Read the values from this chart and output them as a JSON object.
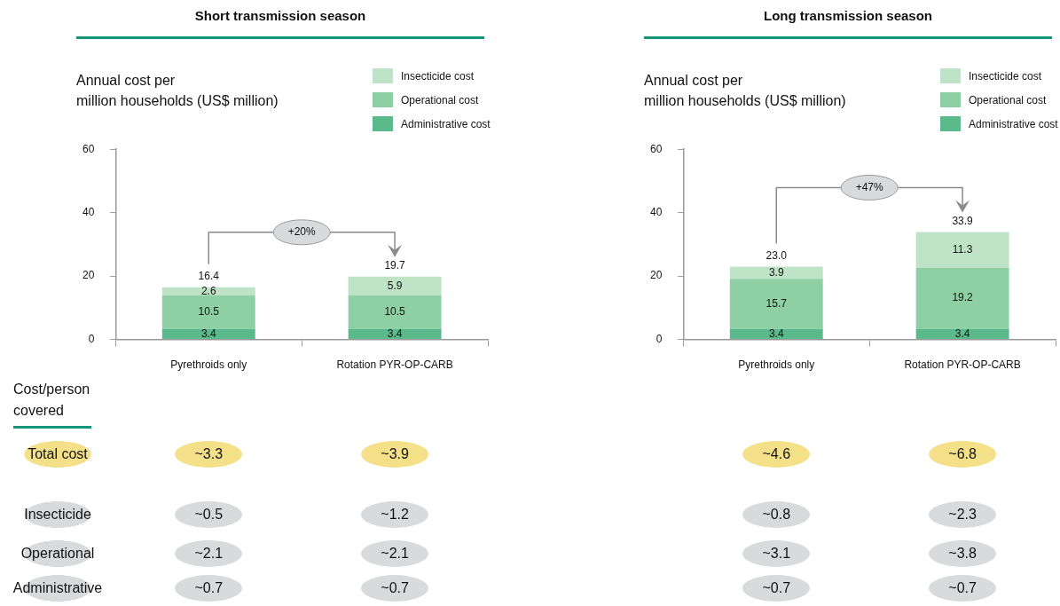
{
  "chart_data": [
    {
      "type": "bar",
      "title": "Short transmission season",
      "ylabel": "Annual cost per\nmillion households (US$ million)",
      "categories": [
        "Pyrethroids only",
        "Rotation PYR-OP-CARB"
      ],
      "stacked": true,
      "series": [
        {
          "name": "Administrative cost",
          "color": "#5bba8b",
          "values": [
            3.4,
            3.4
          ]
        },
        {
          "name": "Operational cost",
          "color": "#8ecfa4",
          "values": [
            10.5,
            10.5
          ]
        },
        {
          "name": "Insecticide cost",
          "color": "#bfe3c7",
          "values": [
            2.6,
            5.9
          ]
        }
      ],
      "totals": [
        "16.4",
        "19.7"
      ],
      "data_labels": true,
      "ylim": [
        0,
        60
      ],
      "yticks": [
        0,
        20,
        40,
        60
      ],
      "grid": false,
      "legend": "top right",
      "annotations": [
        "+20%",
        "~3.3",
        "~3.9",
        "~0.5",
        "~1.2",
        "~2.1",
        "~2.1",
        "~0.7",
        "~0.7"
      ]
    },
    {
      "type": "bar",
      "title": "Long transmission season",
      "ylabel": "Annual cost per\nmillion households (US$ million)",
      "categories": [
        "Pyrethroids only",
        "Rotation PYR-OP-CARB"
      ],
      "stacked": true,
      "series": [
        {
          "name": "Administrative cost",
          "color": "#5bba8b",
          "values": [
            3.4,
            3.4
          ]
        },
        {
          "name": "Operational cost",
          "color": "#8ecfa4",
          "values": [
            15.7,
            19.2
          ]
        },
        {
          "name": "Insecticide cost",
          "color": "#bfe3c7",
          "values": [
            3.9,
            11.3
          ]
        }
      ],
      "totals": [
        "23.0",
        "33.9"
      ],
      "data_labels": true,
      "ylim": [
        0,
        60
      ],
      "yticks": [
        0,
        20,
        40,
        60
      ],
      "grid": false,
      "legend": "top right",
      "annotations": [
        "+47%",
        "~4.6",
        "~6.8",
        "~0.8",
        "~2.3",
        "~3.1",
        "~3.8",
        "~0.7",
        "~0.7"
      ]
    },
    {
      "type": "other",
      "title": "Cost/person covered",
      "annotations": [
        "Total cost",
        "Insecticide",
        "Operational",
        "Administrative"
      ]
    }
  ]
}
